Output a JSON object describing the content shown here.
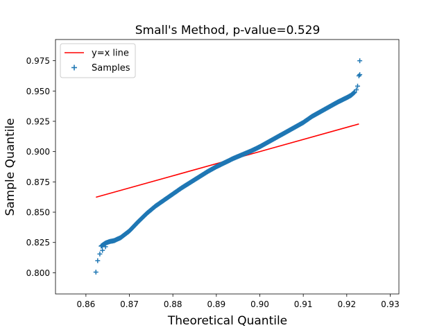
{
  "chart_data": {
    "type": "scatter",
    "title": "Small's Method, p-value=0.529",
    "xlabel": "Theoretical Quantile",
    "ylabel": "Sample Quantile",
    "xlim": [
      0.853,
      0.932
    ],
    "ylim": [
      0.7825,
      0.9925
    ],
    "xticks": [
      0.86,
      0.87,
      0.88,
      0.89,
      0.9,
      0.91,
      0.92,
      0.93
    ],
    "xtick_labels": [
      "0.86",
      "0.87",
      "0.88",
      "0.89",
      "0.90",
      "0.91",
      "0.92",
      "0.93"
    ],
    "yticks": [
      0.8,
      0.825,
      0.85,
      0.875,
      0.9,
      0.925,
      0.95,
      0.975
    ],
    "ytick_labels": [
      "0.800",
      "0.825",
      "0.850",
      "0.875",
      "0.900",
      "0.925",
      "0.950",
      "0.975"
    ],
    "grid": false,
    "legend": {
      "placement": "top-left",
      "entries": [
        {
          "label": "y=x line",
          "marker": "line",
          "color": "#ff0000"
        },
        {
          "label": "Samples",
          "marker": "plus",
          "color": "#1f77b4"
        }
      ]
    },
    "line": {
      "name": "y=x line",
      "color": "#ff0000",
      "x": [
        0.8623,
        0.9228
      ],
      "y": [
        0.8623,
        0.9228
      ]
    },
    "samples": {
      "name": "Samples",
      "color": "#1f77b4",
      "marker": "plus",
      "dense_curve": {
        "x": [
          0.8635,
          0.8645,
          0.8655,
          0.8665,
          0.868,
          0.87,
          0.872,
          0.874,
          0.876,
          0.878,
          0.88,
          0.882,
          0.884,
          0.886,
          0.888,
          0.89,
          0.892,
          0.894,
          0.896,
          0.898,
          0.9,
          0.902,
          0.904,
          0.906,
          0.908,
          0.91,
          0.912,
          0.914,
          0.916,
          0.918,
          0.92,
          0.921,
          0.9218
        ],
        "y": [
          0.822,
          0.8245,
          0.8258,
          0.8265,
          0.829,
          0.8345,
          0.842,
          0.849,
          0.855,
          0.86,
          0.865,
          0.87,
          0.8745,
          0.879,
          0.8835,
          0.8875,
          0.891,
          0.8945,
          0.8975,
          0.9005,
          0.904,
          0.908,
          0.912,
          0.916,
          0.92,
          0.924,
          0.929,
          0.933,
          0.937,
          0.941,
          0.9445,
          0.9465,
          0.949
        ]
      },
      "points": [
        {
          "x": 0.8623,
          "y": 0.8005
        },
        {
          "x": 0.8627,
          "y": 0.81
        },
        {
          "x": 0.8632,
          "y": 0.8155
        },
        {
          "x": 0.8638,
          "y": 0.8185
        },
        {
          "x": 0.8645,
          "y": 0.8215
        },
        {
          "x": 0.9222,
          "y": 0.951
        },
        {
          "x": 0.9225,
          "y": 0.954
        },
        {
          "x": 0.9228,
          "y": 0.9625
        },
        {
          "x": 0.923,
          "y": 0.9635
        },
        {
          "x": 0.923,
          "y": 0.975
        }
      ]
    }
  }
}
